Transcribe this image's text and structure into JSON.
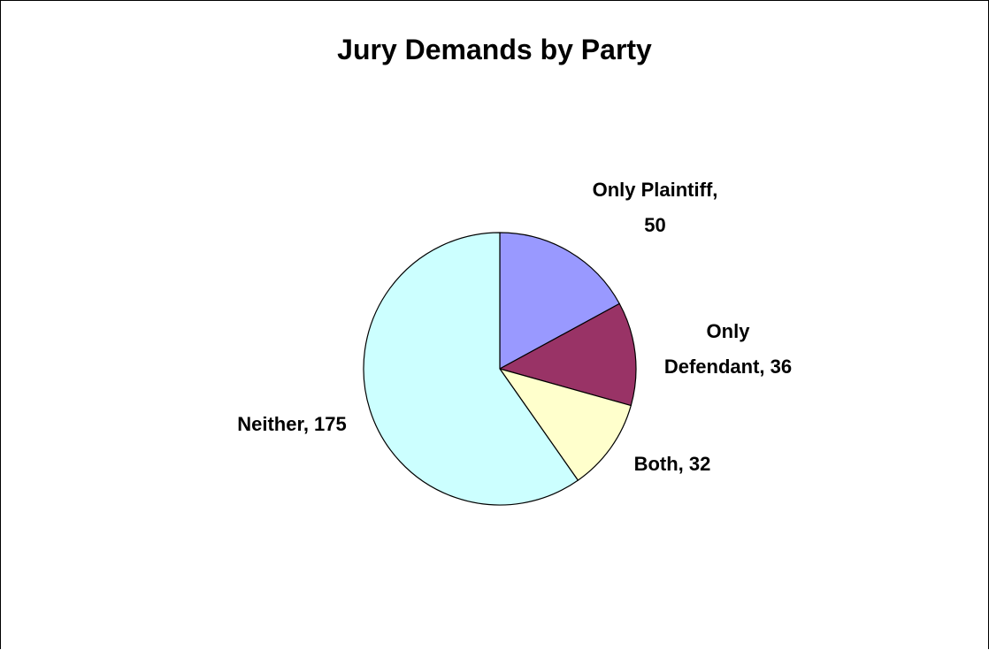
{
  "chart_data": {
    "type": "pie",
    "title": "Jury Demands by Party",
    "slices": [
      {
        "label": "Only Plaintiff",
        "value": 50,
        "color": "#9999FF"
      },
      {
        "label": "Only Defendant",
        "value": 36,
        "color": "#993366"
      },
      {
        "label": "Both",
        "value": 32,
        "color": "#FFFFCC"
      },
      {
        "label": "Neither",
        "value": 175,
        "color": "#CCFFFF"
      }
    ],
    "start_angle": "12 o'clock",
    "direction": "clockwise",
    "legend": "none",
    "data_labels": [
      "Only Plaintiff, 50",
      "Only Defendant, 36",
      "Both, 32",
      "Neither, 175"
    ]
  }
}
